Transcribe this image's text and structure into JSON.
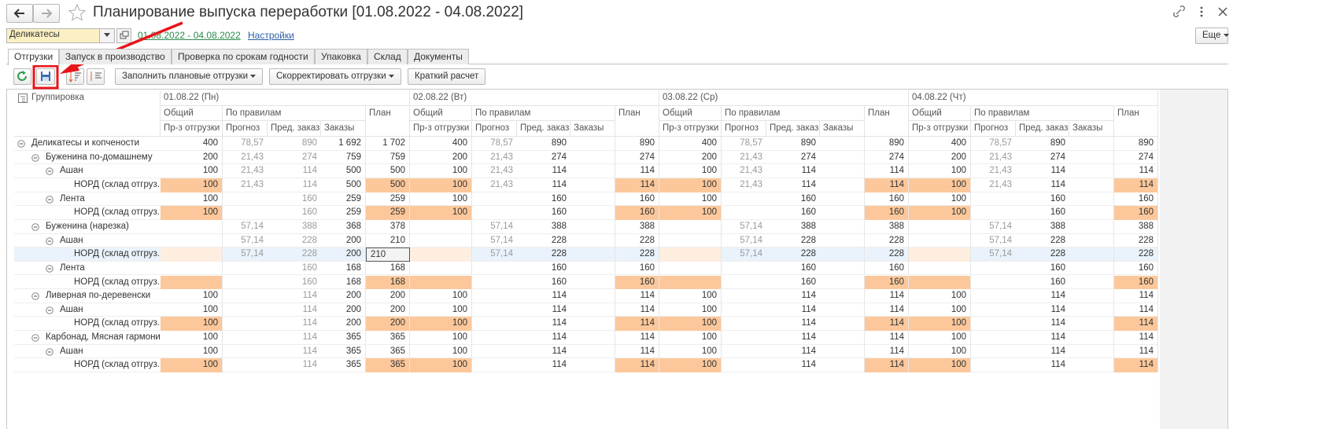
{
  "header": {
    "title": "Планирование выпуска переработки [01.08.2022 - 04.08.2022]"
  },
  "filter": {
    "organization": "Деликатесы",
    "period": "01.08.2022 - 04.08.2022",
    "settings": "Настройки",
    "more": "Еще"
  },
  "tabs": [
    "Отгрузки",
    "Запуск в производство",
    "Проверка по срокам годности",
    "Упаковка",
    "Склад",
    "Документы"
  ],
  "toolbar": [
    "Заполнить плановые отгрузки",
    "Скорректировать отгрузки",
    "Краткий расчет"
  ],
  "table": {
    "grouping": "Группировка",
    "days": [
      "01.08.22 (Пн)",
      "02.08.22 (Вт)",
      "03.08.22 (Ср)",
      "04.08.22 (Чт)"
    ],
    "columns": {
      "total": "Общий",
      "rules": "По правилам",
      "plan": "План",
      "prod": "Пр-з отгрузки",
      "forecast": "Прогноз",
      "preorder": "Пред. заказ",
      "orders": "Заказы"
    },
    "rows": [
      {
        "label": "Деликатесы и копчености",
        "level": 0,
        "cells": [
          [
            "400",
            "78,57",
            "890",
            "1 692",
            "1 702"
          ],
          [
            "400",
            "78,57",
            "890",
            null,
            "890"
          ],
          [
            "400",
            "78,57",
            "890",
            null,
            "890"
          ],
          [
            "400",
            "78,57",
            "890",
            null,
            "890"
          ]
        ]
      },
      {
        "label": "Буженина по-домашнему",
        "level": 1,
        "cells": [
          [
            "200",
            "21,43",
            "274",
            "759",
            "759"
          ],
          [
            "200",
            "21,43",
            "274",
            null,
            "274"
          ],
          [
            "200",
            "21,43",
            "274",
            null,
            "274"
          ],
          [
            "200",
            "21,43",
            "274",
            null,
            "274"
          ]
        ]
      },
      {
        "label": "Ашан",
        "level": 2,
        "cells": [
          [
            "100",
            "21,43",
            "114",
            "500",
            "500"
          ],
          [
            "100",
            "21,43",
            "114",
            null,
            "114"
          ],
          [
            "100",
            "21,43",
            "114",
            null,
            "114"
          ],
          [
            "100",
            "21,43",
            "114",
            null,
            "114"
          ]
        ]
      },
      {
        "label": "НОРД (склад отгруз...",
        "level": 3,
        "highlight": true,
        "cells": [
          [
            "100",
            "21,43",
            "114",
            "500",
            "500"
          ],
          [
            "100",
            "21,43",
            "114",
            null,
            "114"
          ],
          [
            "100",
            "21,43",
            "114",
            null,
            "114"
          ],
          [
            "100",
            "21,43",
            "114",
            null,
            "114"
          ]
        ]
      },
      {
        "label": "Лента",
        "level": 2,
        "cells": [
          [
            "100",
            null,
            "160",
            "259",
            "259"
          ],
          [
            "100",
            null,
            "160",
            null,
            "160"
          ],
          [
            "100",
            null,
            "160",
            null,
            "160"
          ],
          [
            "100",
            null,
            "160",
            null,
            "160"
          ]
        ]
      },
      {
        "label": "НОРД (склад отгруз...",
        "level": 3,
        "highlight": true,
        "cells": [
          [
            "100",
            null,
            "160",
            "259",
            "259"
          ],
          [
            "100",
            null,
            "160",
            null,
            "160"
          ],
          [
            "100",
            null,
            "160",
            null,
            "160"
          ],
          [
            "100",
            null,
            "160",
            null,
            "160"
          ]
        ]
      },
      {
        "label": "Буженина (нарезка)",
        "level": 1,
        "cells": [
          [
            null,
            "57,14",
            "388",
            "368",
            "378"
          ],
          [
            null,
            "57,14",
            "388",
            null,
            "388"
          ],
          [
            null,
            "57,14",
            "388",
            null,
            "388"
          ],
          [
            null,
            "57,14",
            "388",
            null,
            "388"
          ]
        ]
      },
      {
        "label": "Ашан",
        "level": 2,
        "cells": [
          [
            null,
            "57,14",
            "228",
            "200",
            "210"
          ],
          [
            null,
            "57,14",
            "228",
            null,
            "228"
          ],
          [
            null,
            "57,14",
            "228",
            null,
            "228"
          ],
          [
            null,
            "57,14",
            "228",
            null,
            "228"
          ]
        ]
      },
      {
        "label": "НОРД (склад отгруз...",
        "level": 3,
        "highlight": true,
        "selected": true,
        "cells": [
          [
            null,
            "57,14",
            "228",
            "200",
            "210"
          ],
          [
            null,
            "57,14",
            "228",
            null,
            "228"
          ],
          [
            null,
            "57,14",
            "228",
            null,
            "228"
          ],
          [
            null,
            "57,14",
            "228",
            null,
            "228"
          ]
        ]
      },
      {
        "label": "Лента",
        "level": 2,
        "cells": [
          [
            null,
            null,
            "160",
            "168",
            "168"
          ],
          [
            null,
            null,
            "160",
            null,
            "160"
          ],
          [
            null,
            null,
            "160",
            null,
            "160"
          ],
          [
            null,
            null,
            "160",
            null,
            "160"
          ]
        ]
      },
      {
        "label": "НОРД (склад отгруз...",
        "level": 3,
        "highlight": true,
        "cells": [
          [
            null,
            null,
            "160",
            "168",
            "168"
          ],
          [
            null,
            null,
            "160",
            null,
            "160"
          ],
          [
            null,
            null,
            "160",
            null,
            "160"
          ],
          [
            null,
            null,
            "160",
            null,
            "160"
          ]
        ]
      },
      {
        "label": "Ливерная по-деревенски",
        "level": 1,
        "cells": [
          [
            "100",
            null,
            "114",
            "200",
            "200"
          ],
          [
            "100",
            null,
            "114",
            null,
            "114"
          ],
          [
            "100",
            null,
            "114",
            null,
            "114"
          ],
          [
            "100",
            null,
            "114",
            null,
            "114"
          ]
        ]
      },
      {
        "label": "Ашан",
        "level": 2,
        "cells": [
          [
            "100",
            null,
            "114",
            "200",
            "200"
          ],
          [
            "100",
            null,
            "114",
            null,
            "114"
          ],
          [
            "100",
            null,
            "114",
            null,
            "114"
          ],
          [
            "100",
            null,
            "114",
            null,
            "114"
          ]
        ]
      },
      {
        "label": "НОРД (склад отгруз...",
        "level": 3,
        "highlight": true,
        "cells": [
          [
            "100",
            null,
            "114",
            "200",
            "200"
          ],
          [
            "100",
            null,
            "114",
            null,
            "114"
          ],
          [
            "100",
            null,
            "114",
            null,
            "114"
          ],
          [
            "100",
            null,
            "114",
            null,
            "114"
          ]
        ]
      },
      {
        "label": "Карбонад, Мясная гармония",
        "level": 1,
        "cells": [
          [
            "100",
            null,
            "114",
            "365",
            "365"
          ],
          [
            "100",
            null,
            "114",
            null,
            "114"
          ],
          [
            "100",
            null,
            "114",
            null,
            "114"
          ],
          [
            "100",
            null,
            "114",
            null,
            "114"
          ]
        ]
      },
      {
        "label": "Ашан",
        "level": 2,
        "cells": [
          [
            "100",
            null,
            "114",
            "365",
            "365"
          ],
          [
            "100",
            null,
            "114",
            null,
            "114"
          ],
          [
            "100",
            null,
            "114",
            null,
            "114"
          ],
          [
            "100",
            null,
            "114",
            null,
            "114"
          ]
        ]
      },
      {
        "label": "НОРД (склад отгруз...",
        "level": 3,
        "highlight": true,
        "cells": [
          [
            "100",
            null,
            "114",
            "365",
            "365"
          ],
          [
            "100",
            null,
            "114",
            null,
            "114"
          ],
          [
            "100",
            null,
            "114",
            null,
            "114"
          ],
          [
            "100",
            null,
            "114",
            null,
            "114"
          ]
        ]
      }
    ]
  }
}
